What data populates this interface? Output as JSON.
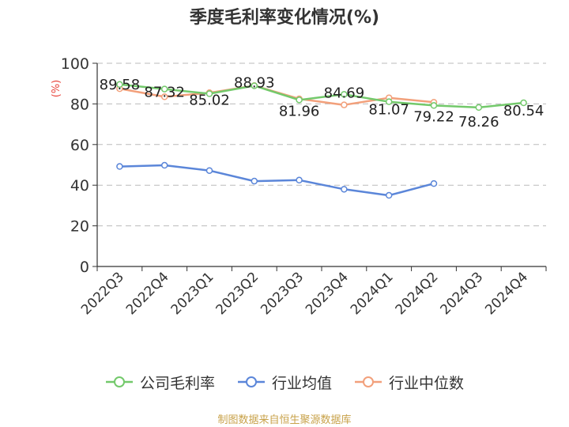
{
  "chart_data": {
    "type": "line",
    "title": "季度毛利率变化情况(%)",
    "ylabel": "(%)",
    "xlabel": "",
    "categories": [
      "2022Q3",
      "2022Q4",
      "2023Q1",
      "2023Q2",
      "2023Q3",
      "2023Q4",
      "2024Q1",
      "2024Q2",
      "2024Q3",
      "2024Q4"
    ],
    "ylim": [
      0,
      100
    ],
    "yticks": [
      "0",
      "20",
      "40",
      "60",
      "80",
      "100"
    ],
    "grid": true,
    "legend_position": "bottom",
    "series": [
      {
        "name": "公司毛利率",
        "color": "#73c96b",
        "values": [
          89.58,
          87.32,
          85.02,
          88.93,
          81.96,
          84.69,
          81.07,
          79.22,
          78.26,
          80.54
        ],
        "labels": [
          "89.58",
          "87.32",
          "85.02",
          "88.93",
          "81.96",
          "84.69",
          "81.07",
          "79.22",
          "78.26",
          "80.54"
        ]
      },
      {
        "name": "行业均值",
        "color": "#5b86d9",
        "values": [
          49.2,
          49.8,
          47.2,
          42.0,
          42.5,
          38.0,
          35.0,
          40.8,
          null,
          null
        ]
      },
      {
        "name": "行业中位数",
        "color": "#f2a07b",
        "values": [
          87.5,
          83.5,
          85.5,
          89.0,
          82.5,
          79.5,
          83.0,
          80.8,
          null,
          null
        ]
      }
    ]
  },
  "source": "制图数据来自恒生聚源数据库"
}
